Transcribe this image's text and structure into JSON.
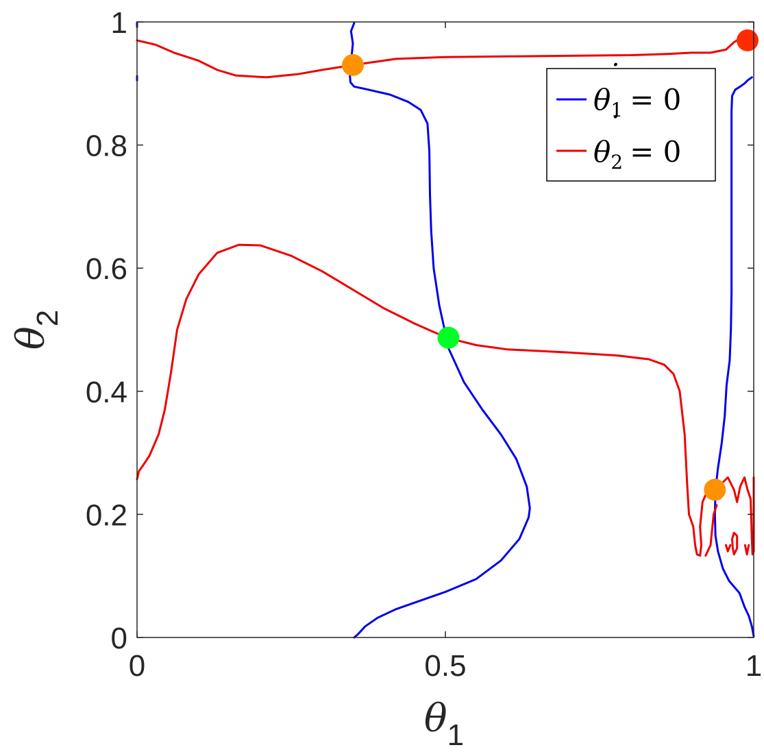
{
  "chart_data": {
    "type": "line",
    "xlabel": "θ",
    "xlabel_sub": "1",
    "ylabel": "θ",
    "ylabel_sub": "2",
    "xlim": [
      0,
      1
    ],
    "ylim": [
      0,
      1
    ],
    "xticks": [
      {
        "value": 0,
        "label": "0"
      },
      {
        "value": 0.5,
        "label": "0.5"
      },
      {
        "value": 1,
        "label": "1"
      }
    ],
    "yticks": [
      {
        "value": 0,
        "label": "0"
      },
      {
        "value": 0.2,
        "label": "0.2"
      },
      {
        "value": 0.4,
        "label": "0.4"
      },
      {
        "value": 0.6,
        "label": "0.6"
      },
      {
        "value": 0.8,
        "label": "0.8"
      },
      {
        "value": 1,
        "label": "1"
      }
    ],
    "grid": false,
    "legend": {
      "position": "top-right",
      "entries": [
        {
          "label": "θ̇1 = 0",
          "symbol": "θ",
          "sub": "1",
          "eq": "= 0",
          "color": "#0000ee"
        },
        {
          "label": "θ̇2 = 0",
          "symbol": "θ",
          "sub": "2",
          "eq": "= 0",
          "color": "#ee0000"
        }
      ]
    },
    "series": [
      {
        "color": "#0000ee",
        "segments": [
          [
            [
              0.352,
              0
            ],
            [
              0.358,
              0.005
            ],
            [
              0.37,
              0.018
            ],
            [
              0.39,
              0.032
            ],
            [
              0.42,
              0.046
            ],
            [
              0.46,
              0.06
            ],
            [
              0.5,
              0.074
            ],
            [
              0.55,
              0.095
            ],
            [
              0.59,
              0.125
            ],
            [
              0.62,
              0.16
            ],
            [
              0.635,
              0.195
            ],
            [
              0.637,
              0.21
            ],
            [
              0.632,
              0.245
            ],
            [
              0.615,
              0.29
            ],
            [
              0.59,
              0.33
            ],
            [
              0.56,
              0.37
            ],
            [
              0.53,
              0.415
            ],
            [
              0.505,
              0.47
            ],
            [
              0.502,
              0.485
            ],
            [
              0.49,
              0.54
            ],
            [
              0.481,
              0.6
            ],
            [
              0.477,
              0.66
            ],
            [
              0.475,
              0.72
            ],
            [
              0.474,
              0.79
            ],
            [
              0.471,
              0.835
            ],
            [
              0.46,
              0.857
            ],
            [
              0.44,
              0.87
            ],
            [
              0.41,
              0.882
            ],
            [
              0.375,
              0.89
            ],
            [
              0.352,
              0.895
            ],
            [
              0.346,
              0.902
            ],
            [
              0.345,
              0.915
            ],
            [
              0.349,
              0.926
            ],
            [
              0.348,
              0.945
            ],
            [
              0.35,
              0.965
            ],
            [
              0.347,
              0.985
            ],
            [
              0.352,
              0.998
            ]
          ],
          [
            [
              0,
              0.905
            ],
            [
              0,
              0.912
            ]
          ],
          [
            [
              0,
              0.992
            ],
            [
              0,
              0.999
            ]
          ],
          [
            [
              1,
              0.002
            ],
            [
              0.997,
              0.018
            ],
            [
              0.992,
              0.035
            ],
            [
              0.985,
              0.05
            ],
            [
              0.977,
              0.072
            ],
            [
              0.96,
              0.092
            ],
            [
              0.95,
              0.112
            ],
            [
              0.942,
              0.14
            ],
            [
              0.938,
              0.165
            ],
            [
              0.937,
              0.2
            ],
            [
              0.938,
              0.24
            ],
            [
              0.942,
              0.275
            ],
            [
              0.948,
              0.315
            ],
            [
              0.953,
              0.36
            ],
            [
              0.956,
              0.41
            ],
            [
              0.961,
              0.45
            ],
            [
              0.963,
              0.5
            ],
            [
              0.964,
              0.56
            ],
            [
              0.964,
              0.66
            ],
            [
              0.964,
              0.77
            ],
            [
              0.964,
              0.855
            ],
            [
              0.965,
              0.88
            ],
            [
              0.97,
              0.89
            ],
            [
              0.978,
              0.895
            ],
            [
              0.985,
              0.9
            ],
            [
              0.99,
              0.905
            ],
            [
              0.997,
              0.91
            ]
          ]
        ]
      },
      {
        "color": "#ee0000",
        "segments": [
          [
            [
              0,
              0.257
            ],
            [
              0.003,
              0.27
            ],
            [
              0.01,
              0.28
            ],
            [
              0.02,
              0.295
            ],
            [
              0.035,
              0.33
            ],
            [
              0.045,
              0.37
            ],
            [
              0.055,
              0.43
            ],
            [
              0.065,
              0.5
            ],
            [
              0.08,
              0.55
            ],
            [
              0.1,
              0.59
            ],
            [
              0.13,
              0.625
            ],
            [
              0.165,
              0.638
            ],
            [
              0.2,
              0.637
            ],
            [
              0.25,
              0.62
            ],
            [
              0.3,
              0.595
            ],
            [
              0.35,
              0.565
            ],
            [
              0.4,
              0.535
            ],
            [
              0.45,
              0.51
            ],
            [
              0.502,
              0.487
            ],
            [
              0.55,
              0.475
            ],
            [
              0.6,
              0.468
            ],
            [
              0.7,
              0.463
            ],
            [
              0.78,
              0.458
            ],
            [
              0.83,
              0.452
            ],
            [
              0.855,
              0.443
            ],
            [
              0.87,
              0.428
            ],
            [
              0.88,
              0.4
            ],
            [
              0.888,
              0.33
            ],
            [
              0.892,
              0.25
            ],
            [
              0.895,
              0.2
            ],
            [
              0.902,
              0.18
            ],
            [
              0.905,
              0.15
            ],
            [
              0.908,
              0.135
            ],
            [
              0.913,
              0.133
            ],
            [
              0.915,
              0.15
            ],
            [
              0.913,
              0.18
            ],
            [
              0.917,
              0.22
            ],
            [
              0.928,
              0.245
            ],
            [
              0.937,
              0.24
            ]
          ],
          [
            [
              0.937,
              0.24
            ],
            [
              0.948,
              0.25
            ],
            [
              0.958,
              0.26
            ],
            [
              0.968,
              0.24
            ],
            [
              0.973,
              0.22
            ],
            [
              0.978,
              0.245
            ],
            [
              0.985,
              0.26
            ],
            [
              0.99,
              0.24
            ],
            [
              0.995,
              0.225
            ],
            [
              0.997,
              0.16
            ],
            [
              0.998,
              0.135
            ],
            [
              1,
              0.14
            ],
            [
              1,
              0.26
            ]
          ],
          [
            [
              0.922,
              0.133
            ],
            [
              0.93,
              0.15
            ],
            [
              0.935,
              0.2
            ],
            [
              0.94,
              0.215
            ]
          ],
          [
            [
              0.955,
              0.15
            ],
            [
              0.958,
              0.14
            ],
            [
              0.962,
              0.15
            ]
          ],
          [
            [
              0.966,
              0.145
            ],
            [
              0.968,
              0.135
            ],
            [
              0.973,
              0.145
            ],
            [
              0.973,
              0.165
            ],
            [
              0.968,
              0.17
            ],
            [
              0.965,
              0.16
            ],
            [
              0.966,
              0.145
            ]
          ],
          [
            [
              0.986,
              0.15
            ],
            [
              0.989,
              0.135
            ],
            [
              0.992,
              0.15
            ]
          ],
          [
            [
              0,
              0.97
            ],
            [
              0.03,
              0.963
            ],
            [
              0.06,
              0.95
            ],
            [
              0.1,
              0.937
            ],
            [
              0.13,
              0.922
            ],
            [
              0.16,
              0.913
            ],
            [
              0.21,
              0.91
            ],
            [
              0.26,
              0.915
            ],
            [
              0.3,
              0.922
            ],
            [
              0.35,
              0.93
            ],
            [
              0.42,
              0.94
            ],
            [
              0.5,
              0.943
            ],
            [
              0.6,
              0.944
            ],
            [
              0.7,
              0.945
            ],
            [
              0.8,
              0.946
            ],
            [
              0.86,
              0.948
            ],
            [
              0.9,
              0.95
            ],
            [
              0.93,
              0.95
            ],
            [
              0.955,
              0.955
            ],
            [
              0.968,
              0.967
            ],
            [
              0.976,
              0.972
            ],
            [
              0.984,
              0.967
            ],
            [
              0.99,
              0.969
            ],
            [
              1,
              0.97
            ]
          ]
        ]
      }
    ],
    "markers": [
      {
        "x": 0.35,
        "y": 0.93,
        "color": "#ff9200"
      },
      {
        "x": 0.505,
        "y": 0.487,
        "color": "#00ff26"
      },
      {
        "x": 0.937,
        "y": 0.24,
        "color": "#ff9200"
      },
      {
        "x": 0.99,
        "y": 0.97,
        "color": "#ff2b00"
      }
    ]
  }
}
